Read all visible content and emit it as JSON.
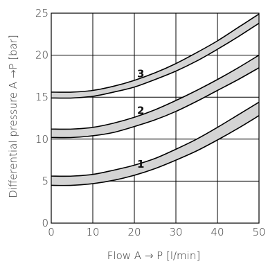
{
  "colors": {
    "band_fill": "#d4d4d4",
    "line": "#000000",
    "grid": "#000000",
    "text": "#333333"
  },
  "chart_data": {
    "type": "area",
    "xlabel": "Flow A → P [l/min]",
    "ylabel": "Differential pressure A →P [bar]",
    "xlim": [
      0,
      50
    ],
    "ylim": [
      0,
      25
    ],
    "x_ticks": [
      0,
      10,
      20,
      30,
      40,
      50
    ],
    "y_ticks": [
      0,
      5,
      10,
      15,
      20,
      25
    ],
    "grid": true,
    "series": [
      {
        "name": "1",
        "label_at": [
          22,
          7
        ],
        "x": [
          0,
          5,
          10,
          15,
          20,
          25,
          30,
          35,
          40,
          45,
          50
        ],
        "upper": [
          5.6,
          5.6,
          5.8,
          6.3,
          6.9,
          7.7,
          8.8,
          10.0,
          11.4,
          12.9,
          14.4
        ],
        "lower": [
          4.5,
          4.5,
          4.7,
          5.1,
          5.7,
          6.5,
          7.5,
          8.6,
          9.9,
          11.3,
          12.8
        ]
      },
      {
        "name": "2",
        "label_at": [
          22,
          13.4
        ],
        "x": [
          0,
          5,
          10,
          15,
          20,
          25,
          30,
          35,
          40,
          45,
          50
        ],
        "upper": [
          11.2,
          11.2,
          11.4,
          11.9,
          12.6,
          13.5,
          14.6,
          15.8,
          17.1,
          18.5,
          20.0
        ],
        "lower": [
          10.2,
          10.2,
          10.4,
          10.8,
          11.5,
          12.3,
          13.3,
          14.5,
          15.8,
          17.1,
          18.5
        ]
      },
      {
        "name": "3",
        "label_at": [
          22,
          17.8
        ],
        "x": [
          0,
          5,
          10,
          15,
          20,
          25,
          30,
          35,
          40,
          45,
          50
        ],
        "upper": [
          15.6,
          15.6,
          15.8,
          16.3,
          17.0,
          17.9,
          19.0,
          20.3,
          21.7,
          23.3,
          24.9
        ],
        "lower": [
          14.9,
          14.9,
          15.1,
          15.6,
          16.2,
          17.1,
          18.1,
          19.3,
          20.7,
          22.2,
          23.8
        ]
      }
    ]
  }
}
